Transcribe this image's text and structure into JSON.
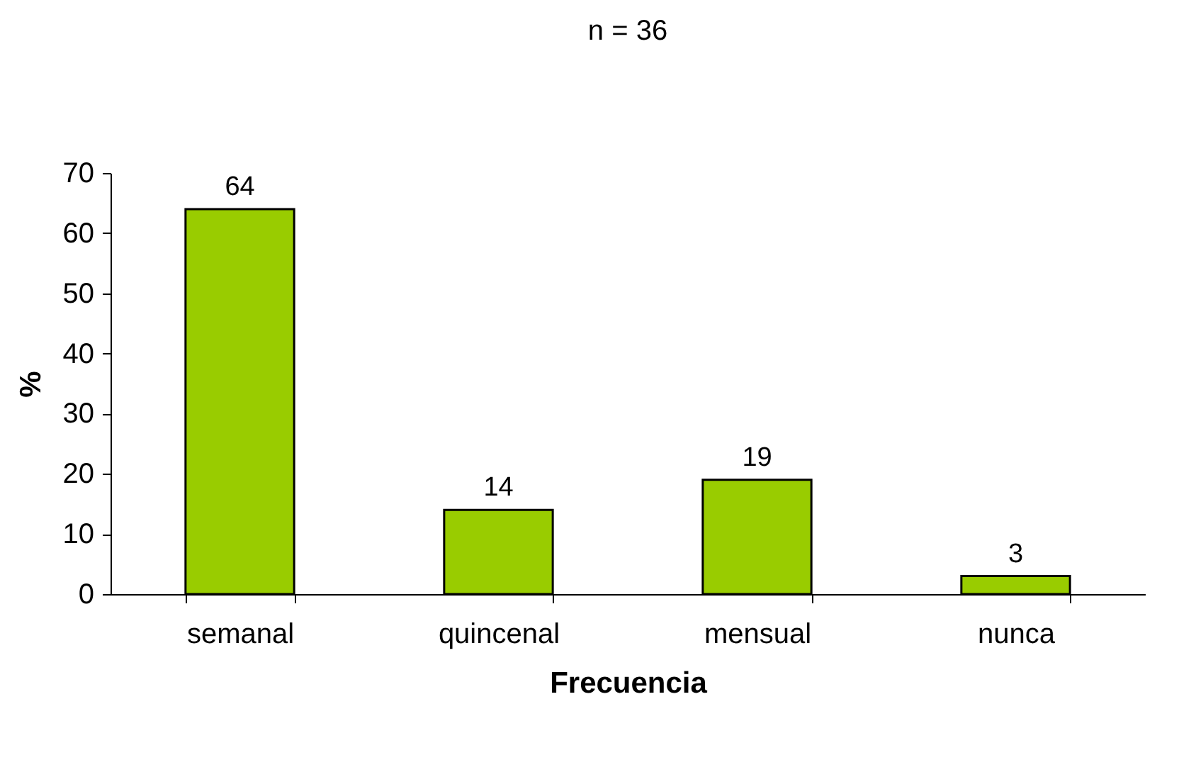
{
  "chart_data": {
    "type": "bar",
    "title": "n = 36",
    "xlabel": "Frecuencia",
    "ylabel": "%",
    "categories": [
      "semanal",
      "quincenal",
      "mensual",
      "nunca"
    ],
    "values": [
      64,
      14,
      19,
      3
    ],
    "color": "#99cc00",
    "ylim": [
      0,
      70
    ],
    "yticks": [
      0,
      10,
      20,
      30,
      40,
      50,
      60,
      70
    ],
    "grid": false,
    "data_labels": true
  }
}
